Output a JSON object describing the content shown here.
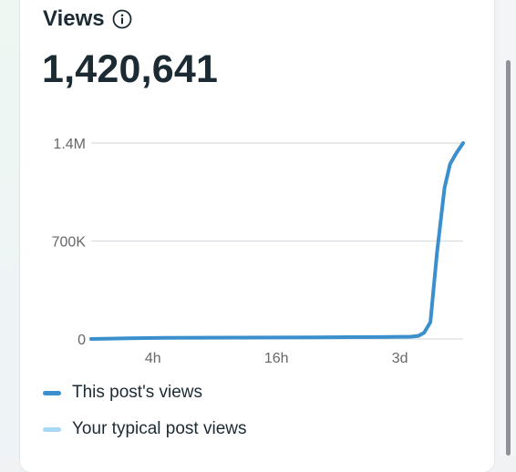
{
  "header": {
    "title": "Views",
    "info_icon": "info-icon"
  },
  "metric": {
    "value": "1,420,641"
  },
  "colors": {
    "this_post": "#3a8fcc",
    "typical": "#a8d8f5",
    "grid": "#dadde1"
  },
  "chart_data": {
    "type": "line",
    "title": "",
    "xlabel": "",
    "ylabel": "",
    "yticks": [
      "0",
      "700K",
      "1.4M"
    ],
    "ytick_values": [
      0,
      700000,
      1400000
    ],
    "ylim": [
      0,
      1400000
    ],
    "xticks": [
      "4h",
      "16h",
      "3d"
    ],
    "xlim": [
      0,
      100
    ],
    "xtick_positions": [
      16.6,
      49.8,
      83.0
    ],
    "grid": true,
    "legend_position": "bottom",
    "series": [
      {
        "name": "This post's views",
        "x": [
          0,
          10,
          20,
          40,
          60,
          78,
          86,
          88,
          89.5,
          91.2,
          93,
          95,
          96.5,
          98.2,
          100
        ],
        "y": [
          0,
          5000,
          8000,
          10000,
          12000,
          14000,
          16000,
          22000,
          45000,
          120000,
          620000,
          1080000,
          1250000,
          1330000,
          1400000
        ]
      },
      {
        "name": "Your typical post views",
        "x": [],
        "y": []
      }
    ]
  },
  "legend": {
    "items": [
      {
        "label": "This post's views"
      },
      {
        "label": "Your typical post views"
      }
    ]
  }
}
